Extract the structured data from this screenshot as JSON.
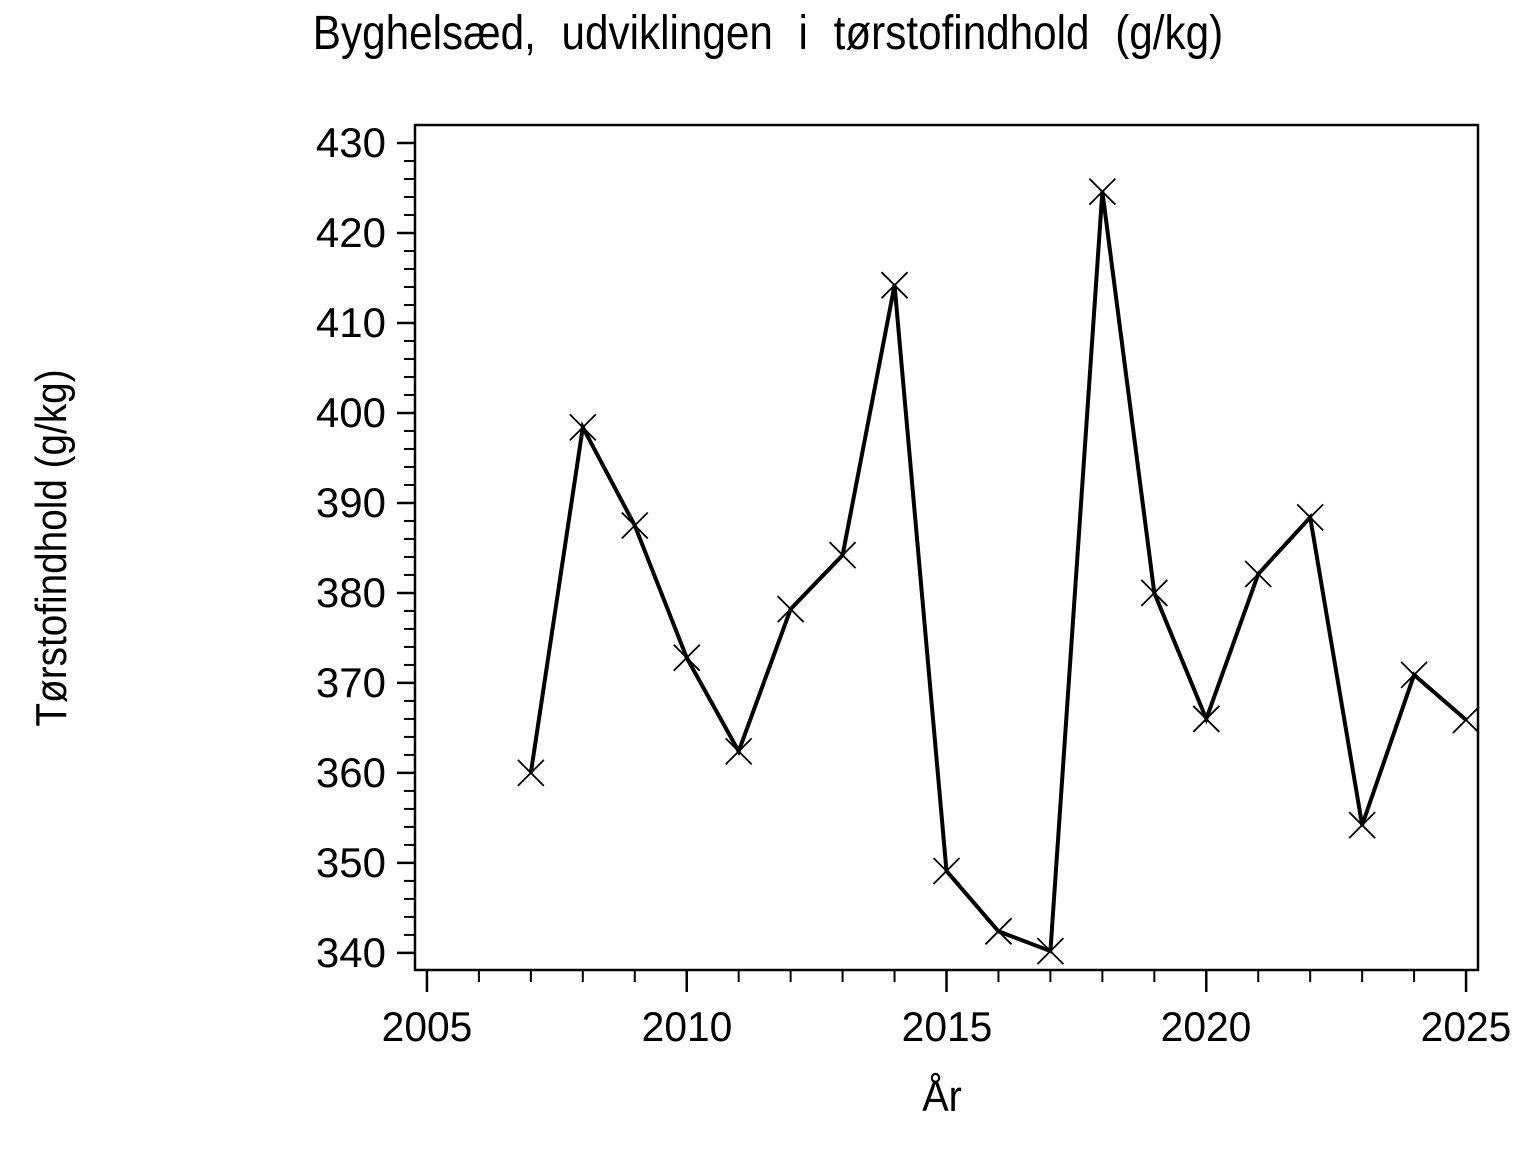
{
  "colors": {
    "background": "#ffffff",
    "line": "#000000",
    "axis": "#000000",
    "text": "#000000"
  },
  "chart_data": {
    "type": "line",
    "title": "Byghelsæd, udviklingen i tørstofindhold (g/kg)",
    "xlabel": "År",
    "ylabel": "Tørstofindhold (g/kg)",
    "x": [
      2007,
      2008,
      2009,
      2010,
      2011,
      2012,
      2013,
      2014,
      2015,
      2016,
      2017,
      2018,
      2019,
      2020,
      2021,
      2022,
      2023,
      2024,
      2025
    ],
    "values": [
      360.0,
      398.4,
      387.5,
      372.8,
      362.4,
      378.2,
      384.2,
      414.2,
      349.1,
      342.4,
      340.2,
      424.6,
      380.0,
      366.0,
      382.1,
      388.4,
      354.2,
      370.9,
      365.9
    ],
    "series_name": "Tørstofindhold",
    "marker": "x",
    "line_color": "#000000",
    "marker_color": "#000000",
    "xlim": [
      2004.77,
      2025.23
    ],
    "ylim": [
      338.1,
      432.0
    ],
    "x_major_ticks": [
      2005,
      2010,
      2015,
      2020,
      2025
    ],
    "x_minor_step": 1,
    "y_major_ticks": [
      340,
      350,
      360,
      370,
      380,
      390,
      400,
      410,
      420,
      430
    ],
    "y_minor_step": 2,
    "grid": false
  }
}
